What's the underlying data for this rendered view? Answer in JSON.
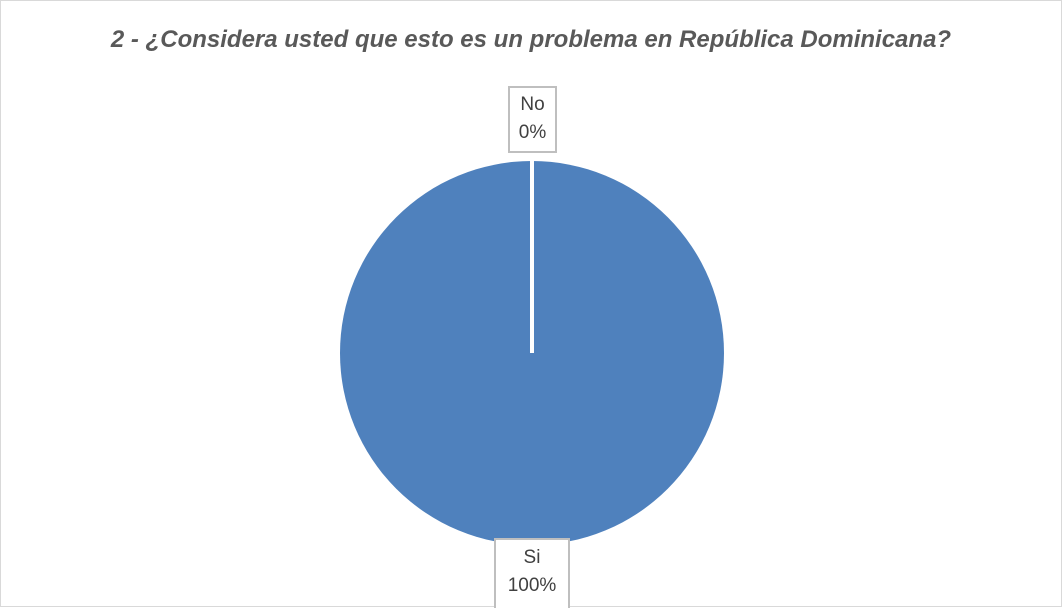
{
  "chart_data": {
    "type": "pie",
    "title": "2 - ¿Considera usted que esto es un problema en República Dominicana?",
    "slices": [
      {
        "label": "No",
        "value": 0,
        "percent_label": "0%",
        "color": "#4f81bd"
      },
      {
        "label": "Si",
        "value": 100,
        "percent_label": "100%",
        "color": "#4f81bd"
      }
    ],
    "start_angle_deg": 0,
    "slice_border_color": "#ffffff"
  }
}
